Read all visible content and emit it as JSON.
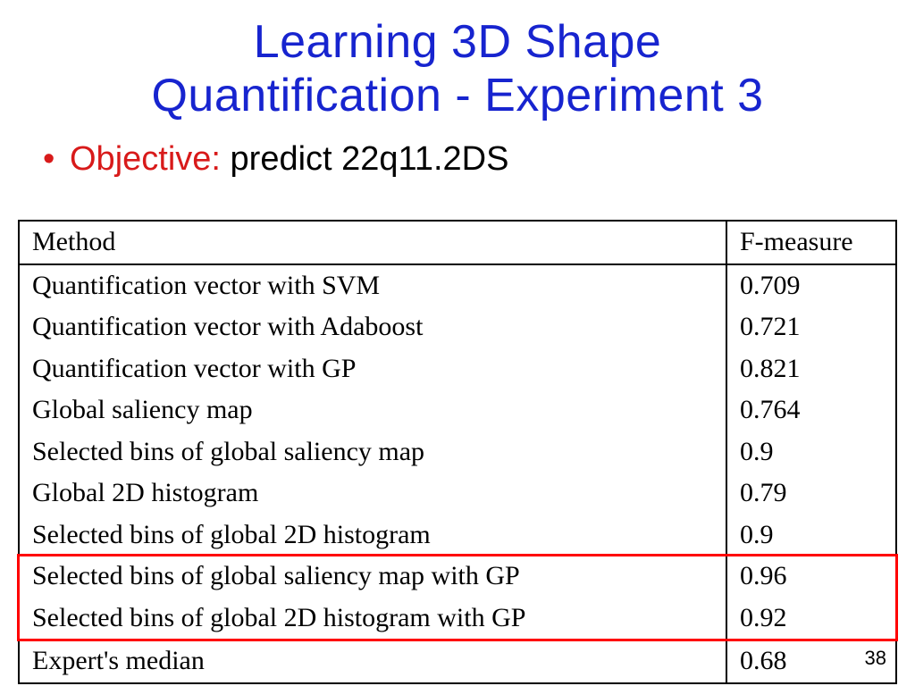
{
  "title": {
    "line1": "Learning 3D Shape",
    "line2": "Quantification - Experiment 3",
    "color": "#1724cf",
    "fontsize": 52
  },
  "bullet": {
    "dot_color": "#d81a1a",
    "label": "Objective:",
    "label_color": "#d81a1a",
    "value": " predict 22q11.2DS",
    "value_color": "#000000",
    "fontsize": 38
  },
  "table": {
    "type": "table",
    "font_family": "Times New Roman",
    "fontsize": 30,
    "border_color": "#000000",
    "columns": [
      "Method",
      "F-measure"
    ],
    "col_widths": [
      "auto",
      "190px"
    ],
    "rows": [
      [
        "Quantification vector with SVM",
        "0.709"
      ],
      [
        "Quantification vector with Adaboost",
        "0.721"
      ],
      [
        "Quantification vector with GP",
        "0.821"
      ],
      [
        "Global saliency map",
        "0.764"
      ],
      [
        "Selected bins of global saliency map",
        "0.9"
      ],
      [
        "Global 2D histogram",
        "0.79"
      ],
      [
        "Selected bins of global 2D histogram",
        "0.9"
      ],
      [
        "Selected bins of global saliency map with GP",
        "0.96"
      ],
      [
        "Selected bins of global 2D histogram with GP",
        "0.92"
      ],
      [
        "Expert's median",
        "0.68"
      ]
    ],
    "section_breaks_after_row": [
      8
    ],
    "highlight": {
      "rows": [
        7,
        8
      ],
      "color": "#ff0000",
      "border_width": 3
    }
  },
  "page_number": "38",
  "background_color": "#ffffff"
}
